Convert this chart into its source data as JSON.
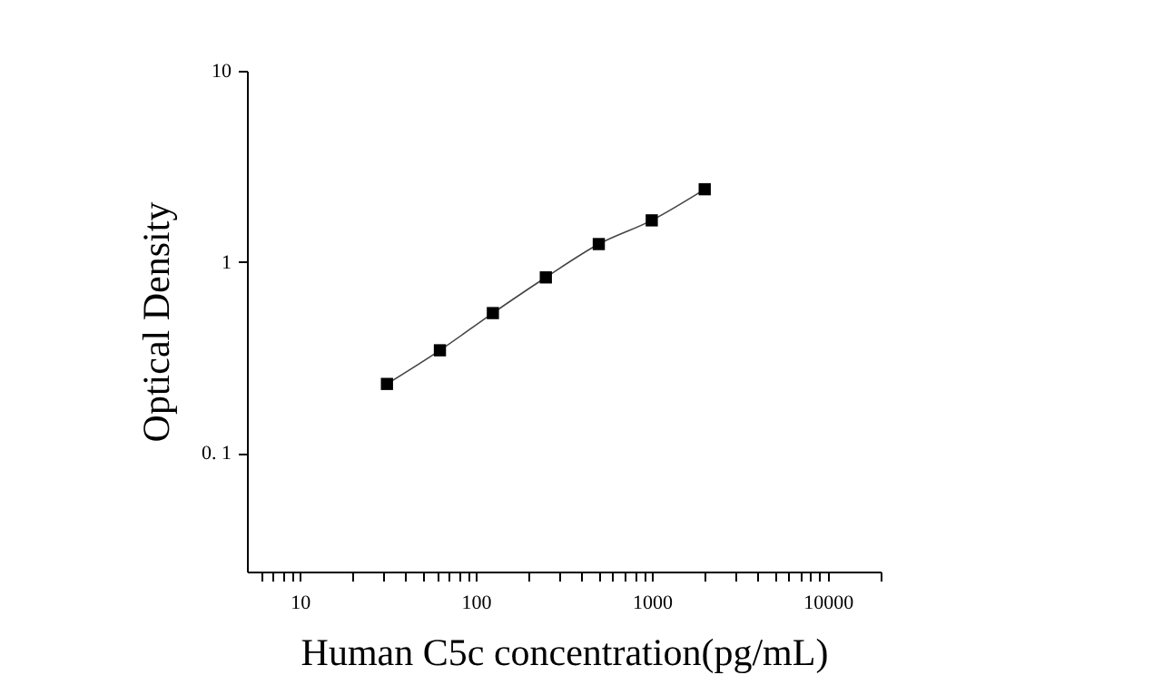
{
  "chart_data": {
    "type": "line",
    "xlabel": "Human C5c concentration(pg/mL)",
    "ylabel": "Optical Density",
    "log": "xy",
    "marker": "square",
    "line_style": "solid",
    "grid": false,
    "x": [
      31.25,
      62.5,
      125,
      250,
      500,
      1000,
      2000
    ],
    "series": [
      {
        "color": "#000000",
        "values": [
          0.23,
          0.345,
          0.54,
          0.83,
          1.24,
          1.65,
          2.4
        ]
      }
    ],
    "xlim": [
      5,
      20000
    ],
    "xticks": [
      {
        "value": 6,
        "label": null
      },
      {
        "value": 7,
        "label": null
      },
      {
        "value": 8,
        "label": null
      },
      {
        "value": 9,
        "label": null
      },
      10,
      {
        "value": 20,
        "label": null
      },
      {
        "value": 30,
        "label": null
      },
      {
        "value": 40,
        "label": null
      },
      {
        "value": 50,
        "label": null
      },
      {
        "value": 60,
        "label": null
      },
      {
        "value": 70,
        "label": null
      },
      {
        "value": 80,
        "label": null
      },
      {
        "value": 90,
        "label": null
      },
      100,
      {
        "value": 200,
        "label": null
      },
      {
        "value": 300,
        "label": null
      },
      {
        "value": 400,
        "label": null
      },
      {
        "value": 500,
        "label": null
      },
      {
        "value": 600,
        "label": null
      },
      {
        "value": 700,
        "label": null
      },
      {
        "value": 800,
        "label": null
      },
      {
        "value": 900,
        "label": null
      },
      1000,
      {
        "value": 2000,
        "label": null
      },
      {
        "value": 3000,
        "label": null
      },
      {
        "value": 4000,
        "label": null
      },
      {
        "value": 5000,
        "label": null
      },
      {
        "value": 6000,
        "label": null
      },
      {
        "value": 7000,
        "label": null
      },
      {
        "value": 8000,
        "label": null
      },
      {
        "value": 9000,
        "label": null
      },
      10000,
      {
        "value": 20000,
        "label": null
      }
    ],
    "ylim": [
      0.024,
      10
    ],
    "yticks": [
      {
        "value": 0.1,
        "label": "0. 1"
      },
      1,
      10
    ]
  }
}
